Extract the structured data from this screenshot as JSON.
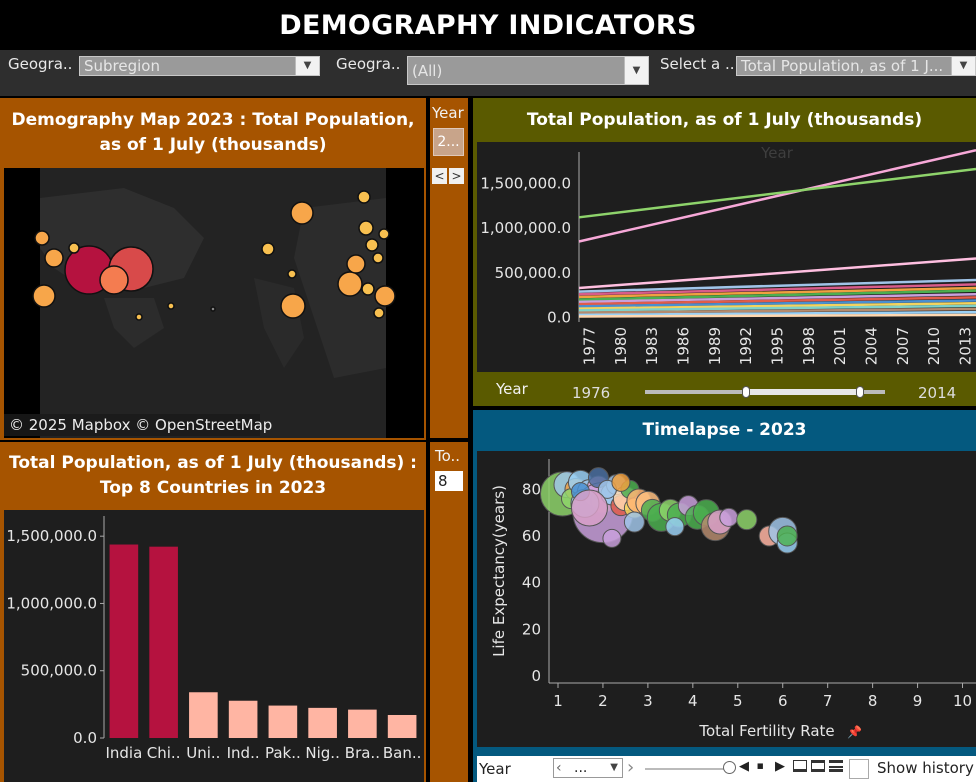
{
  "header": {
    "title": "DEMOGRAPHY INDICATORS"
  },
  "filters": [
    {
      "label": "Geogra..",
      "value": "Subregion"
    },
    {
      "label": "Geogra..",
      "value": "(All)"
    },
    {
      "label": "Select a ..",
      "value": "Total Population, as of 1 J..."
    }
  ],
  "map_panel": {
    "title": "Demography Map 2023 :  Total Population, as of 1 July (thousands)",
    "attribution": "© 2025 Mapbox © OpenStreetMap"
  },
  "year_control": {
    "label": "Year",
    "value": "2...",
    "prev": "<",
    "next": ">"
  },
  "topn_control": {
    "label": "To..",
    "value": "8"
  },
  "bar_panel": {
    "title": "Total Population, as of 1 July (thousands) : Top 8 Countries in 2023",
    "chart_data": {
      "type": "bar",
      "categories": [
        "India",
        "Chi..",
        "Uni..",
        "Ind..",
        "Pak..",
        "Nig..",
        "Bra..",
        "Ban.."
      ],
      "values": [
        1438000,
        1422000,
        340000,
        277000,
        241000,
        224000,
        211000,
        171000
      ],
      "highlight": [
        true,
        true,
        false,
        false,
        false,
        false,
        false,
        false
      ],
      "yticks": [
        "1,500,000.0",
        "1,000,000.0",
        "500,000.0",
        "0.0"
      ],
      "ylim": [
        0,
        1650000
      ],
      "colors": {
        "highlight": "#b5123f",
        "normal": "#ffb5a3"
      }
    }
  },
  "line_panel": {
    "title": "Total Population, as of 1 July (thousands)",
    "axis_caption": "Year",
    "chart_data": {
      "type": "line",
      "x_ticks": [
        "1977",
        "1980",
        "1983",
        "1986",
        "1989",
        "1992",
        "1995",
        "1998",
        "2001",
        "2004",
        "2007",
        "2010",
        "2013"
      ],
      "yticks": [
        "1,500,000.0",
        "1,000,000.0",
        "500,000.0",
        "0.0"
      ],
      "ylim": [
        -50000,
        1850000
      ],
      "xlim": [
        1976,
        2014
      ],
      "series": [
        {
          "values": [
            [
              1976,
              850000
            ],
            [
              2014,
              1870000
            ]
          ],
          "color": "#f7a8d8"
        },
        {
          "values": [
            [
              1976,
              1120000
            ],
            [
              2014,
              1660000
            ]
          ],
          "color": "#8ed36b"
        },
        {
          "values": [
            [
              1976,
              330000
            ],
            [
              2014,
              660000
            ]
          ],
          "color": "#ffbfe0"
        },
        {
          "values": [
            [
              1976,
              290000
            ],
            [
              2014,
              420000
            ]
          ],
          "color": "#a0c4e8"
        },
        {
          "values": [
            [
              1976,
              260000
            ],
            [
              2014,
              370000
            ]
          ],
          "color": "#d85c8a"
        },
        {
          "values": [
            [
              1976,
              230000
            ],
            [
              2014,
              330000
            ]
          ],
          "color": "#f0a040"
        },
        {
          "values": [
            [
              1976,
              200000
            ],
            [
              2014,
              300000
            ]
          ],
          "color": "#4caf50"
        },
        {
          "values": [
            [
              1976,
              175000
            ],
            [
              2014,
              260000
            ]
          ],
          "color": "#c9a0dc"
        },
        {
          "values": [
            [
              1976,
              150000
            ],
            [
              2014,
              225000
            ]
          ],
          "color": "#e05c4a"
        },
        {
          "values": [
            [
              1976,
              125000
            ],
            [
              2014,
              190000
            ]
          ],
          "color": "#4a8fd0"
        },
        {
          "values": [
            [
              1976,
              100000
            ],
            [
              2014,
              160000
            ]
          ],
          "color": "#f4d35e"
        },
        {
          "values": [
            [
              1976,
              80000
            ],
            [
              2014,
              130000
            ]
          ],
          "color": "#7fd1c8"
        },
        {
          "values": [
            [
              1976,
              55000
            ],
            [
              2014,
              95000
            ]
          ],
          "color": "#b58b6e"
        },
        {
          "values": [
            [
              1976,
              30000
            ],
            [
              2014,
              60000
            ]
          ],
          "color": "#9ad0f5"
        },
        {
          "values": [
            [
              1976,
              12000
            ],
            [
              2014,
              30000
            ]
          ],
          "color": "#ffd8b0"
        }
      ]
    },
    "slider": {
      "label": "Year",
      "min_label": "1976",
      "max_label": "2014",
      "start": 1976,
      "end": 2014,
      "handle_low": 1992,
      "handle_high": 2010
    }
  },
  "scatter_panel": {
    "title": "Timelapse - 2023",
    "chart_data": {
      "type": "scatter",
      "xlabel": "Total Fertility Rate",
      "ylabel": "Life Expectancy(years)",
      "xlim": [
        0.8,
        10.3
      ],
      "ylim": [
        -3,
        93
      ],
      "xticks": [
        "1",
        "2",
        "3",
        "4",
        "5",
        "6",
        "7",
        "8",
        "9",
        "10"
      ],
      "yticks": [
        "0",
        "20",
        "40",
        "60",
        "80"
      ],
      "points": [
        [
          1.1,
          78,
          22,
          "#8ed36b"
        ],
        [
          1.2,
          82,
          13,
          "#a0c4e8"
        ],
        [
          1.4,
          80,
          11,
          "#f0a040"
        ],
        [
          1.3,
          76,
          10,
          "#8ed36b"
        ],
        [
          1.5,
          83,
          12,
          "#9ad0f5"
        ],
        [
          1.7,
          79,
          12,
          "#a0c4e8"
        ],
        [
          1.8,
          77,
          10,
          "#ffbfe0"
        ],
        [
          1.9,
          81,
          11,
          "#f7a8d8"
        ],
        [
          2.0,
          75,
          12,
          "#f0a040"
        ],
        [
          2.0,
          70,
          30,
          "#c9a0dc"
        ],
        [
          1.6,
          74,
          14,
          "#a0c4e8"
        ],
        [
          2.2,
          78,
          11,
          "#9ad0f5"
        ],
        [
          2.3,
          82,
          10,
          "#a0c4e8"
        ],
        [
          2.4,
          73,
          10,
          "#e05c4a"
        ],
        [
          2.5,
          76,
          12,
          "#ffd8b0"
        ],
        [
          2.6,
          80,
          9,
          "#4caf50"
        ],
        [
          2.7,
          72,
          10,
          "#f4d35e"
        ],
        [
          2.8,
          75,
          12,
          "#ffb574"
        ],
        [
          3.0,
          74,
          12,
          "#ffbf80"
        ],
        [
          3.1,
          71,
          11,
          "#4caf50"
        ],
        [
          3.3,
          68,
          14,
          "#4caf50"
        ],
        [
          3.5,
          71,
          11,
          "#8ed36b"
        ],
        [
          3.7,
          69,
          12,
          "#4caf50"
        ],
        [
          3.9,
          73,
          10,
          "#c9a0dc"
        ],
        [
          4.1,
          68,
          12,
          "#4caf50"
        ],
        [
          4.3,
          70,
          13,
          "#4caf50"
        ],
        [
          4.5,
          64,
          14,
          "#b58b6e"
        ],
        [
          4.6,
          66,
          12,
          "#d8a0c8"
        ],
        [
          4.8,
          68,
          9,
          "#c9a0dc"
        ],
        [
          5.2,
          67,
          10,
          "#8ed36b"
        ],
        [
          1.5,
          79,
          9,
          "#4a8fd0"
        ],
        [
          1.9,
          85,
          10,
          "#4a6fa0"
        ],
        [
          2.1,
          80,
          9,
          "#a0c4e8"
        ],
        [
          2.4,
          83,
          9,
          "#f0a040"
        ],
        [
          2.7,
          66,
          10,
          "#a0c4e8"
        ],
        [
          3.6,
          64,
          9,
          "#9ad0f5"
        ],
        [
          5.7,
          60,
          10,
          "#ffb5a3"
        ],
        [
          6.0,
          62,
          14,
          "#a0c4e8"
        ],
        [
          6.1,
          57,
          10,
          "#9ad0f5"
        ],
        [
          6.1,
          60,
          10,
          "#4caf50"
        ],
        [
          2.2,
          59,
          9,
          "#c9a0dc"
        ],
        [
          1.7,
          72,
          18,
          "#d8a0c8"
        ]
      ]
    }
  },
  "playback": {
    "field": "Year",
    "value": "...",
    "show_history": "Show history"
  }
}
